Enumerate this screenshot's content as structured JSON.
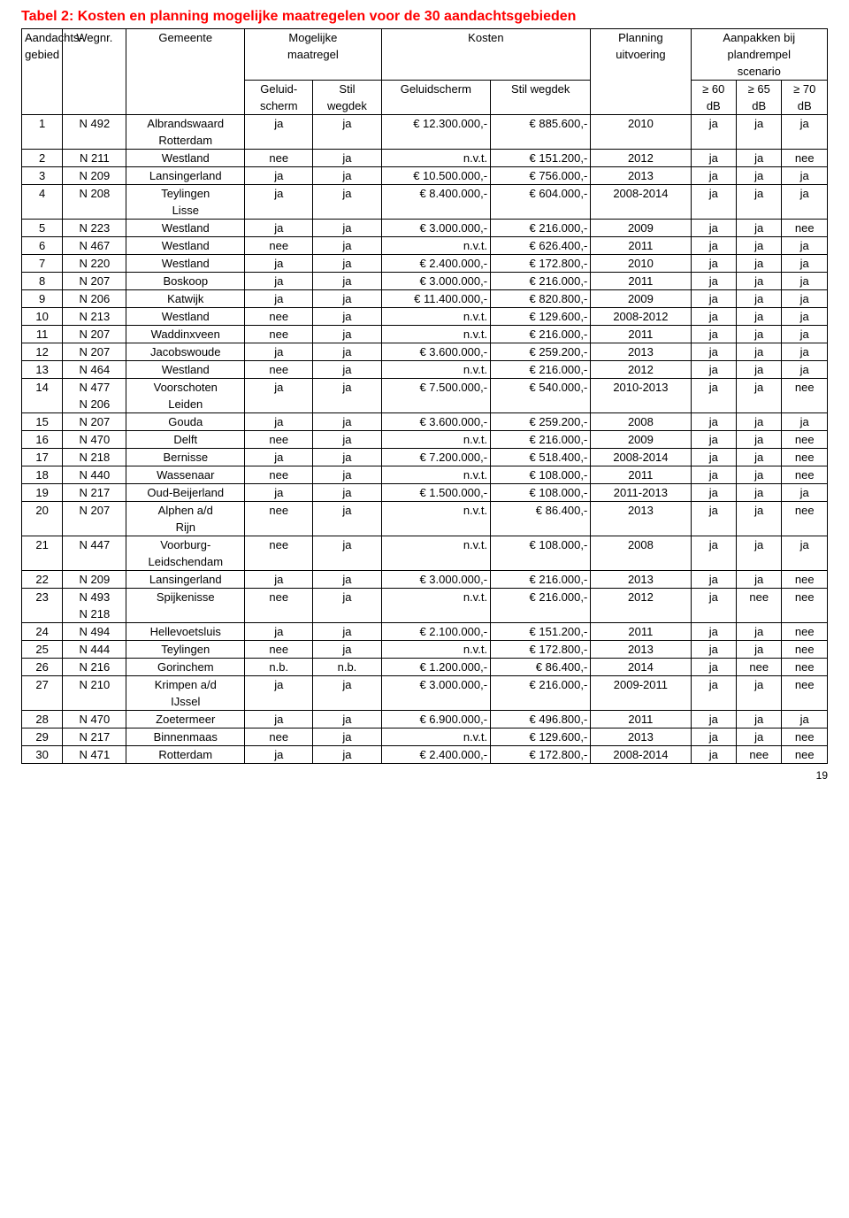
{
  "title": "Tabel 2: Kosten en planning mogelijke maatregelen voor de 30 aandachtsgebieden",
  "page_number": "19",
  "header": {
    "col1_l1": "Aandachts-",
    "col1_l2": "gebied",
    "col2": "Wegnr.",
    "col3": "Gemeente",
    "col4_l1": "Mogelijke",
    "col4_l2": "maatregel",
    "col4_sub1_l1": "Geluid-",
    "col4_sub1_l2": "scherm",
    "col4_sub2_l1": "Stil",
    "col4_sub2_l2": "wegdek",
    "col5": "Kosten",
    "col5_sub1": "Geluidscherm",
    "col5_sub2": "Stil wegdek",
    "col6_l1": "Planning",
    "col6_l2": "uitvoering",
    "col7_l1": "Aanpakken bij",
    "col7_l2": "plandrempel",
    "col7_l3": "scenario",
    "col7_sub1_l1": "≥ 60",
    "col7_sub1_l2": "dB",
    "col7_sub2_l1": "≥ 65",
    "col7_sub2_l2": "dB",
    "col7_sub3_l1": "≥ 70",
    "col7_sub3_l2": "dB"
  },
  "rows": [
    {
      "n": "1",
      "w": "N 492",
      "g": [
        "Albrandswaard",
        "Rotterdam"
      ],
      "gs": "ja",
      "sw": "ja",
      "kg": "€ 12.300.000,-",
      "ks": "€ 885.600,-",
      "p": "2010",
      "a": "ja",
      "b": "ja",
      "c": "ja"
    },
    {
      "n": "2",
      "w": "N 211",
      "g": [
        "Westland"
      ],
      "gs": "nee",
      "sw": "ja",
      "kg": "n.v.t.",
      "ks": "€ 151.200,-",
      "p": "2012",
      "a": "ja",
      "b": "ja",
      "c": "nee"
    },
    {
      "n": "3",
      "w": "N 209",
      "g": [
        "Lansingerland"
      ],
      "gs": "ja",
      "sw": "ja",
      "kg": "€ 10.500.000,-",
      "ks": "€ 756.000,-",
      "p": "2013",
      "a": "ja",
      "b": "ja",
      "c": "ja"
    },
    {
      "n": "4",
      "w": "N 208",
      "g": [
        "Teylingen",
        "Lisse"
      ],
      "gs": "ja",
      "sw": "ja",
      "kg": "€ 8.400.000,-",
      "ks": "€ 604.000,-",
      "p": "2008-2014",
      "a": "ja",
      "b": "ja",
      "c": "ja"
    },
    {
      "n": "5",
      "w": "N 223",
      "g": [
        "Westland"
      ],
      "gs": "ja",
      "sw": "ja",
      "kg": "€ 3.000.000,-",
      "ks": "€ 216.000,-",
      "p": "2009",
      "a": "ja",
      "b": "ja",
      "c": "nee"
    },
    {
      "n": "6",
      "w": "N 467",
      "g": [
        "Westland"
      ],
      "gs": "nee",
      "sw": "ja",
      "kg": "n.v.t.",
      "ks": "€ 626.400,-",
      "p": "2011",
      "a": "ja",
      "b": "ja",
      "c": "ja"
    },
    {
      "n": "7",
      "w": "N 220",
      "g": [
        "Westland"
      ],
      "gs": "ja",
      "sw": "ja",
      "kg": "€ 2.400.000,-",
      "ks": "€ 172.800,-",
      "p": "2010",
      "a": "ja",
      "b": "ja",
      "c": "ja"
    },
    {
      "n": "8",
      "w": "N 207",
      "g": [
        "Boskoop"
      ],
      "gs": "ja",
      "sw": "ja",
      "kg": "€ 3.000.000,-",
      "ks": "€ 216.000,-",
      "p": "2011",
      "a": "ja",
      "b": "ja",
      "c": "ja"
    },
    {
      "n": "9",
      "w": "N 206",
      "g": [
        "Katwijk"
      ],
      "gs": "ja",
      "sw": "ja",
      "kg": "€ 11.400.000,-",
      "ks": "€ 820.800,-",
      "p": "2009",
      "a": "ja",
      "b": "ja",
      "c": "ja"
    },
    {
      "n": "10",
      "w": "N 213",
      "g": [
        "Westland"
      ],
      "gs": "nee",
      "sw": "ja",
      "kg": "n.v.t.",
      "ks": "€ 129.600,-",
      "p": "2008-2012",
      "a": "ja",
      "b": "ja",
      "c": "ja"
    },
    {
      "n": "11",
      "w": "N 207",
      "g": [
        "Waddinxveen"
      ],
      "gs": "nee",
      "sw": "ja",
      "kg": "n.v.t.",
      "ks": "€ 216.000,-",
      "p": "2011",
      "a": "ja",
      "b": "ja",
      "c": "ja"
    },
    {
      "n": "12",
      "w": "N 207",
      "g": [
        "Jacobswoude"
      ],
      "gs": "ja",
      "sw": "ja",
      "kg": "€ 3.600.000,-",
      "ks": "€ 259.200,-",
      "p": "2013",
      "a": "ja",
      "b": "ja",
      "c": "ja"
    },
    {
      "n": "13",
      "w": "N 464",
      "g": [
        "Westland"
      ],
      "gs": "nee",
      "sw": "ja",
      "kg": "n.v.t.",
      "ks": "€ 216.000,-",
      "p": "2012",
      "a": "ja",
      "b": "ja",
      "c": "ja"
    },
    {
      "n": "14",
      "w": [
        "N 477",
        "N 206"
      ],
      "g": [
        "Voorschoten",
        "Leiden"
      ],
      "gs": "ja",
      "sw": "ja",
      "kg": "€ 7.500.000,-",
      "ks": "€ 540.000,-",
      "p": "2010-2013",
      "a": "ja",
      "b": "ja",
      "c": "nee"
    },
    {
      "n": "15",
      "w": "N 207",
      "g": [
        "Gouda"
      ],
      "gs": "ja",
      "sw": "ja",
      "kg": "€ 3.600.000,-",
      "ks": "€ 259.200,-",
      "p": "2008",
      "a": "ja",
      "b": "ja",
      "c": "ja"
    },
    {
      "n": "16",
      "w": "N 470",
      "g": [
        "Delft"
      ],
      "gs": "nee",
      "sw": "ja",
      "kg": "n.v.t.",
      "ks": "€ 216.000,-",
      "p": "2009",
      "a": "ja",
      "b": "ja",
      "c": "nee"
    },
    {
      "n": "17",
      "w": "N 218",
      "g": [
        "Bernisse"
      ],
      "gs": "ja",
      "sw": "ja",
      "kg": "€ 7.200.000,-",
      "ks": "€ 518.400,-",
      "p": "2008-2014",
      "a": "ja",
      "b": "ja",
      "c": "nee"
    },
    {
      "n": "18",
      "w": "N 440",
      "g": [
        "Wassenaar"
      ],
      "gs": "nee",
      "sw": "ja",
      "kg": "n.v.t.",
      "ks": "€ 108.000,-",
      "p": "2011",
      "a": "ja",
      "b": "ja",
      "c": "nee"
    },
    {
      "n": "19",
      "w": "N 217",
      "g": [
        "Oud-Beijerland"
      ],
      "gs": "ja",
      "sw": "ja",
      "kg": "€ 1.500.000,-",
      "ks": "€ 108.000,-",
      "p": "2011-2013",
      "a": "ja",
      "b": "ja",
      "c": "ja"
    },
    {
      "n": "20",
      "w": "N 207",
      "g": [
        "Alphen a/d",
        "Rijn"
      ],
      "gs": "nee",
      "sw": "ja",
      "kg": "n.v.t.",
      "ks": "€ 86.400,-",
      "p": "2013",
      "a": "ja",
      "b": "ja",
      "c": "nee"
    },
    {
      "n": "21",
      "w": "N 447",
      "g": [
        "Voorburg-",
        "Leidschendam"
      ],
      "gs": "nee",
      "sw": "ja",
      "kg": "n.v.t.",
      "ks": "€ 108.000,-",
      "p": "2008",
      "a": "ja",
      "b": "ja",
      "c": "ja"
    },
    {
      "n": "22",
      "w": "N 209",
      "g": [
        "Lansingerland"
      ],
      "gs": "ja",
      "sw": "ja",
      "kg": "€ 3.000.000,-",
      "ks": "€ 216.000,-",
      "p": "2013",
      "a": "ja",
      "b": "ja",
      "c": "nee"
    },
    {
      "n": "23",
      "w": [
        "N 493",
        "N 218"
      ],
      "g": [
        "Spijkenisse"
      ],
      "gs": "nee",
      "sw": "ja",
      "kg": "n.v.t.",
      "ks": "€ 216.000,-",
      "p": "2012",
      "a": "ja",
      "b": "nee",
      "c": "nee"
    },
    {
      "n": "24",
      "w": "N 494",
      "g": [
        "Hellevoetsluis"
      ],
      "gs": "ja",
      "sw": "ja",
      "kg": "€ 2.100.000,-",
      "ks": "€ 151.200,-",
      "p": "2011",
      "a": "ja",
      "b": "ja",
      "c": "nee"
    },
    {
      "n": "25",
      "w": "N 444",
      "g": [
        "Teylingen"
      ],
      "gs": "nee",
      "sw": "ja",
      "kg": "n.v.t.",
      "ks": "€ 172.800,-",
      "p": "2013",
      "a": "ja",
      "b": "ja",
      "c": "nee"
    },
    {
      "n": "26",
      "w": "N 216",
      "g": [
        "Gorinchem"
      ],
      "gs": "n.b.",
      "sw": "n.b.",
      "kg": "€ 1.200.000,-",
      "ks": "€ 86.400,-",
      "p": "2014",
      "a": "ja",
      "b": "nee",
      "c": "nee"
    },
    {
      "n": "27",
      "w": "N 210",
      "g": [
        "Krimpen a/d",
        "IJssel"
      ],
      "gs": "ja",
      "sw": "ja",
      "kg": "€ 3.000.000,-",
      "ks": "€ 216.000,-",
      "p": "2009-2011",
      "a": "ja",
      "b": "ja",
      "c": "nee"
    },
    {
      "n": "28",
      "w": "N 470",
      "g": [
        "Zoetermeer"
      ],
      "gs": "ja",
      "sw": "ja",
      "kg": "€ 6.900.000,-",
      "ks": "€ 496.800,-",
      "p": "2011",
      "a": "ja",
      "b": "ja",
      "c": "ja"
    },
    {
      "n": "29",
      "w": "N 217",
      "g": [
        "Binnenmaas"
      ],
      "gs": "nee",
      "sw": "ja",
      "kg": "n.v.t.",
      "ks": "€ 129.600,-",
      "p": "2013",
      "a": "ja",
      "b": "ja",
      "c": "nee"
    },
    {
      "n": "30",
      "w": "N 471",
      "g": [
        "Rotterdam"
      ],
      "gs": "ja",
      "sw": "ja",
      "kg": "€ 2.400.000,-",
      "ks": "€ 172.800,-",
      "p": "2008-2014",
      "a": "ja",
      "b": "nee",
      "c": "nee"
    }
  ]
}
